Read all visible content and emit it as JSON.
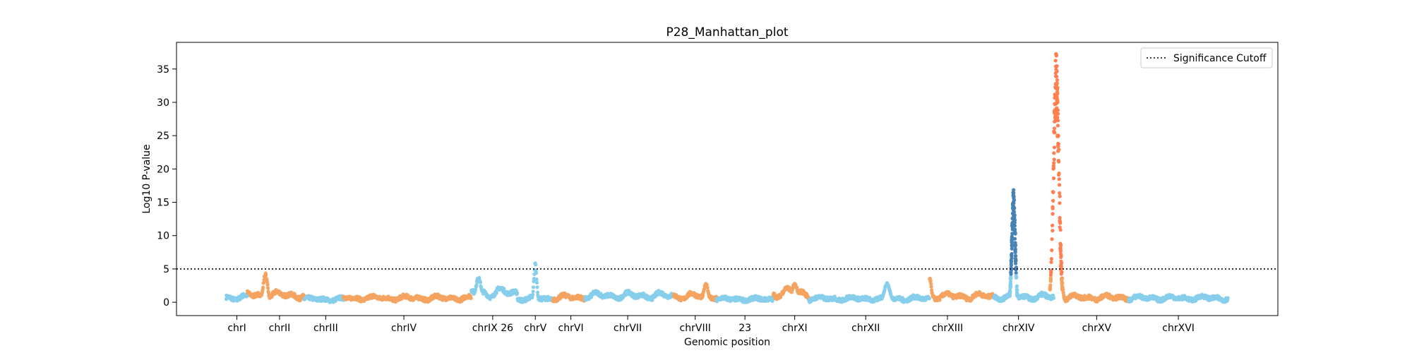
{
  "chart_data": {
    "type": "scatter",
    "title": "P28_Manhattan_plot",
    "xlabel": "Genomic position",
    "ylabel": "Log10 P-value",
    "xlim": [
      0,
      1550
    ],
    "ylim": [
      -2,
      39
    ],
    "yticks": [
      0,
      5,
      10,
      15,
      20,
      25,
      30,
      35
    ],
    "xticks": [
      {
        "pos": 85,
        "label": "chrI"
      },
      {
        "pos": 145,
        "label": "chrII"
      },
      {
        "pos": 210,
        "label": "chrIII"
      },
      {
        "pos": 320,
        "label": "chrIV"
      },
      {
        "pos": 445,
        "label": "chrIX 26"
      },
      {
        "pos": 505,
        "label": "chrV"
      },
      {
        "pos": 555,
        "label": "chrVI"
      },
      {
        "pos": 635,
        "label": "chrVII"
      },
      {
        "pos": 730,
        "label": "chrVIII"
      },
      {
        "pos": 800,
        "label": "23"
      },
      {
        "pos": 870,
        "label": "chrXI"
      },
      {
        "pos": 970,
        "label": "chrXII"
      },
      {
        "pos": 1085,
        "label": "chrXIII"
      },
      {
        "pos": 1185,
        "label": "chrXIV"
      },
      {
        "pos": 1295,
        "label": "chrXV"
      },
      {
        "pos": 1410,
        "label": "chrXVI"
      }
    ],
    "significance_cutoff": 5,
    "legend": {
      "placement": "top-right",
      "entries": [
        {
          "name": "Significance Cutoff",
          "style": "dotted-line",
          "color": "#000000"
        }
      ]
    },
    "grid": false,
    "colors": {
      "light_blue": "#87CEEB",
      "light_orange": "#F4A460",
      "steel_blue": "#4682B4",
      "coral": "#FF7F50"
    },
    "chromosomes": [
      {
        "name": "chrI",
        "start": 70,
        "end": 100,
        "color": "#87CEEB",
        "base": 0.8
      },
      {
        "name": "chrII",
        "start": 100,
        "end": 180,
        "color": "#F4A460",
        "base": 1.2,
        "peaks": [
          {
            "x": 125,
            "y": 4.6,
            "w": 6
          }
        ]
      },
      {
        "name": "chrIII",
        "start": 180,
        "end": 235,
        "color": "#87CEEB",
        "base": 0.5
      },
      {
        "name": "chrIV",
        "start": 235,
        "end": 415,
        "color": "#F4A460",
        "base": 0.7
      },
      {
        "name": "chrIX 26",
        "start": 415,
        "end": 480,
        "color": "#87CEEB",
        "base": 1.6,
        "peaks": [
          {
            "x": 425,
            "y": 3.8,
            "w": 8
          }
        ]
      },
      {
        "name": "chrV",
        "start": 480,
        "end": 530,
        "color": "#87CEEB",
        "base": 0.6,
        "peaks": [
          {
            "x": 505,
            "y": 6.1,
            "w": 4
          }
        ]
      },
      {
        "name": "chrVI",
        "start": 530,
        "end": 575,
        "color": "#F4A460",
        "base": 0.8
      },
      {
        "name": "chrVII",
        "start": 575,
        "end": 700,
        "color": "#87CEEB",
        "base": 1.1
      },
      {
        "name": "chrVIII",
        "start": 700,
        "end": 760,
        "color": "#F4A460",
        "base": 1.0,
        "peaks": [
          {
            "x": 745,
            "y": 3.0,
            "w": 6
          }
        ]
      },
      {
        "name": "23",
        "start": 760,
        "end": 840,
        "color": "#87CEEB",
        "base": 0.5
      },
      {
        "name": "chrXI",
        "start": 840,
        "end": 890,
        "color": "#F4A460",
        "base": 1.6,
        "peaks": [
          {
            "x": 870,
            "y": 2.9,
            "w": 8
          }
        ]
      },
      {
        "name": "chrXII",
        "start": 890,
        "end": 1060,
        "color": "#87CEEB",
        "base": 0.6,
        "peaks": [
          {
            "x": 1000,
            "y": 3.0,
            "w": 8
          }
        ]
      },
      {
        "name": "chrXIII",
        "start": 1060,
        "end": 1150,
        "color": "#F4A460",
        "base": 1.0,
        "peaks": [
          {
            "x": 1060,
            "y": 3.8,
            "w": 5
          }
        ]
      },
      {
        "name": "chrXIV",
        "start": 1150,
        "end": 1235,
        "color": "#87CEEB",
        "base": 0.9,
        "peaks": [
          {
            "x": 1178,
            "y": 17,
            "w": 5,
            "color": "#4682B4"
          }
        ]
      },
      {
        "name": "chrXV",
        "start": 1235,
        "end": 1340,
        "color": "#F4A460",
        "base": 0.8,
        "peaks": [
          {
            "x": 1238,
            "y": 37.5,
            "w": 8,
            "color": "#FF7F50"
          }
        ]
      },
      {
        "name": "chrXVI",
        "start": 1340,
        "end": 1480,
        "color": "#87CEEB",
        "base": 0.7
      }
    ]
  }
}
